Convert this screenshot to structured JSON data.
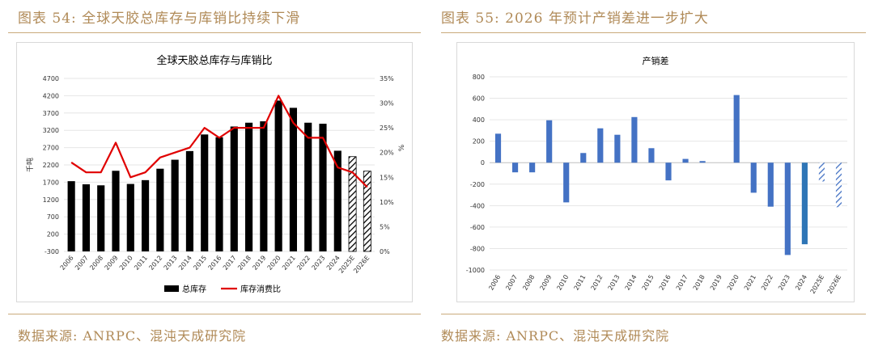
{
  "left_figure": {
    "caption": "图表 54:  全球天胶总库存与库销比持续下滑",
    "source": "数据来源:  ANRPC、混沌天成研究院"
  },
  "right_figure": {
    "caption": "图表 55: 2026 年预计产销差进一步扩大",
    "source": "数据来源:  ANRPC、混沌天成研究院"
  },
  "colors": {
    "accent": "#b08a57",
    "bar_black": "#000000",
    "line_red": "#e00000",
    "bar_blue": "#4472c4",
    "bar_blue_dark": "#2e75b6"
  },
  "chart_data": [
    {
      "type": "bar",
      "title": "全球天胶总库存与库销比",
      "categories": [
        "2006",
        "2007",
        "2008",
        "2009",
        "2010",
        "2011",
        "2012",
        "2013",
        "2014",
        "2015",
        "2016",
        "2017",
        "2018",
        "2019",
        "2020",
        "2021",
        "2022",
        "2023",
        "2024",
        "2025E",
        "2026E"
      ],
      "series": [
        {
          "name": "总库存",
          "type": "bar",
          "axis": "left",
          "values": [
            1730,
            1640,
            1610,
            2030,
            1650,
            1760,
            2090,
            2350,
            2600,
            3080,
            3000,
            3310,
            3420,
            3460,
            4060,
            3850,
            3420,
            3390,
            2610,
            2440,
            2020
          ],
          "hatched_categories": [
            "2025E",
            "2026E"
          ]
        },
        {
          "name": "库存消费比",
          "type": "line",
          "axis": "right",
          "values": [
            18.0,
            16.0,
            16.0,
            22.0,
            15.0,
            16.0,
            19.0,
            20.0,
            21.0,
            25.0,
            23.0,
            25.0,
            25.0,
            25.0,
            31.5,
            26.0,
            23.0,
            23.0,
            17.0,
            16.0,
            13.0
          ]
        }
      ],
      "ylabel": "千吨",
      "y2label": "%",
      "ylim": [
        -300,
        4700
      ],
      "yticks": [
        -300,
        200,
        700,
        1200,
        1700,
        2200,
        2700,
        3200,
        3700,
        4200,
        4700
      ],
      "y2lim": [
        0,
        35
      ],
      "y2ticks": [
        "0%",
        "5%",
        "10%",
        "15%",
        "20%",
        "25%",
        "30%",
        "35%"
      ],
      "legend": [
        "总库存",
        "库存消费比"
      ],
      "legend_position": "bottom"
    },
    {
      "type": "bar",
      "title": "产销差",
      "categories": [
        "2006",
        "2007",
        "2008",
        "2009",
        "2010",
        "2011",
        "2012",
        "2013",
        "2014",
        "2015",
        "2016",
        "2017",
        "2018",
        "2019",
        "2020",
        "2021",
        "2022",
        "2023",
        "2024",
        "2025E",
        "2026E"
      ],
      "values": [
        270,
        -90,
        -90,
        395,
        -370,
        90,
        320,
        260,
        425,
        135,
        -165,
        35,
        15,
        0,
        630,
        -280,
        -410,
        -860,
        -760,
        -175,
        -415
      ],
      "hatched_categories": [
        "2025E",
        "2026E"
      ],
      "dark_categories": [
        "2024"
      ],
      "ylim": [
        -1000,
        800
      ],
      "yticks": [
        -1000,
        -800,
        -600,
        -400,
        -200,
        0,
        200,
        400,
        600,
        800
      ],
      "xlabel": "",
      "ylabel": ""
    }
  ]
}
